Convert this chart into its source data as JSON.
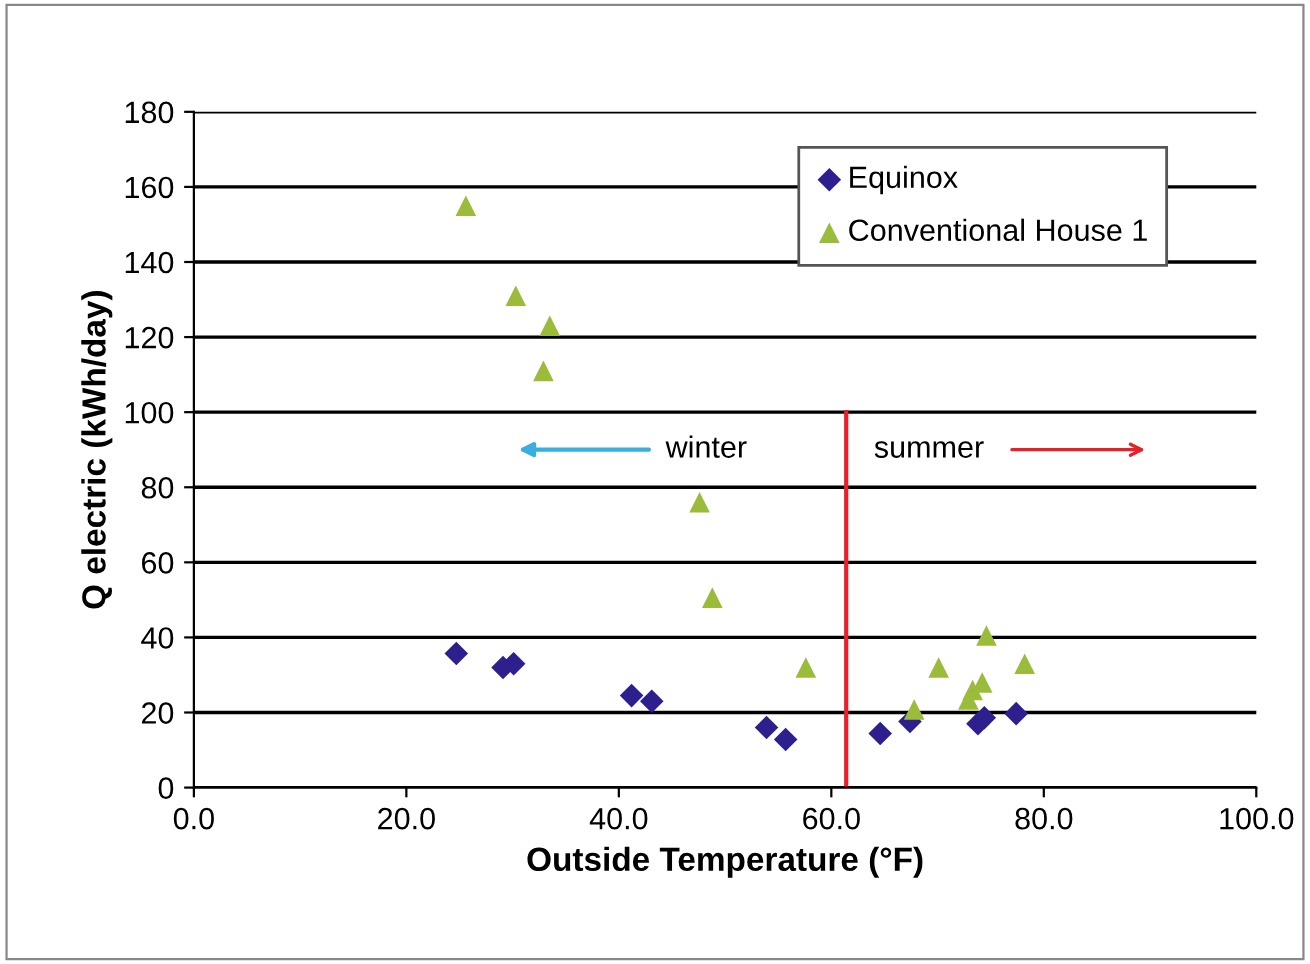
{
  "chart_data": {
    "type": "scatter",
    "xlabel": "Outside Temperature (°F)",
    "ylabel": "Q electric (kWh/day)",
    "xlim": [
      0,
      100
    ],
    "xticks": [
      {
        "value": 0,
        "label": "0.0"
      },
      {
        "value": 20,
        "label": "20.0"
      },
      {
        "value": 40,
        "label": "40.0"
      },
      {
        "value": 60,
        "label": "60.0"
      },
      {
        "value": 80,
        "label": "80.0"
      },
      {
        "value": 100,
        "label": "100.0"
      }
    ],
    "ylim": [
      0,
      180
    ],
    "yticks": [
      0,
      20,
      40,
      60,
      80,
      100,
      120,
      140,
      160,
      180
    ],
    "grid": "y",
    "legend": "top right",
    "series": [
      {
        "name": "Equinox",
        "color": "#2e1f8f",
        "marker": "diamond",
        "x": [
          24.7,
          29.1,
          30.1,
          41.2,
          43.1,
          53.9,
          55.7,
          64.6,
          67.4,
          73.8,
          74.4,
          77.4
        ],
        "values": [
          35.7,
          32,
          33,
          24.5,
          23,
          16,
          12.8,
          14.4,
          17.6,
          17,
          18.6,
          19.7
        ]
      },
      {
        "name": "Conventional House 1",
        "color": "#9bbb3b",
        "marker": "triangle",
        "x": [
          25.6,
          30.3,
          33.5,
          32.9,
          47.6,
          48.8,
          57.6,
          67.8,
          70.1,
          72.9,
          73.3,
          74.2,
          74.6,
          78.2
        ],
        "values": [
          155,
          131,
          123,
          111,
          76,
          50.6,
          32,
          20.8,
          32,
          23.5,
          26,
          28,
          40.5,
          33
        ]
      },
      {
        "type": "line",
        "color": "#e8202a",
        "x": [
          61.4,
          61.4
        ],
        "values": [
          0,
          100
        ]
      }
    ],
    "annotations": [
      "winter",
      "summer"
    ]
  }
}
